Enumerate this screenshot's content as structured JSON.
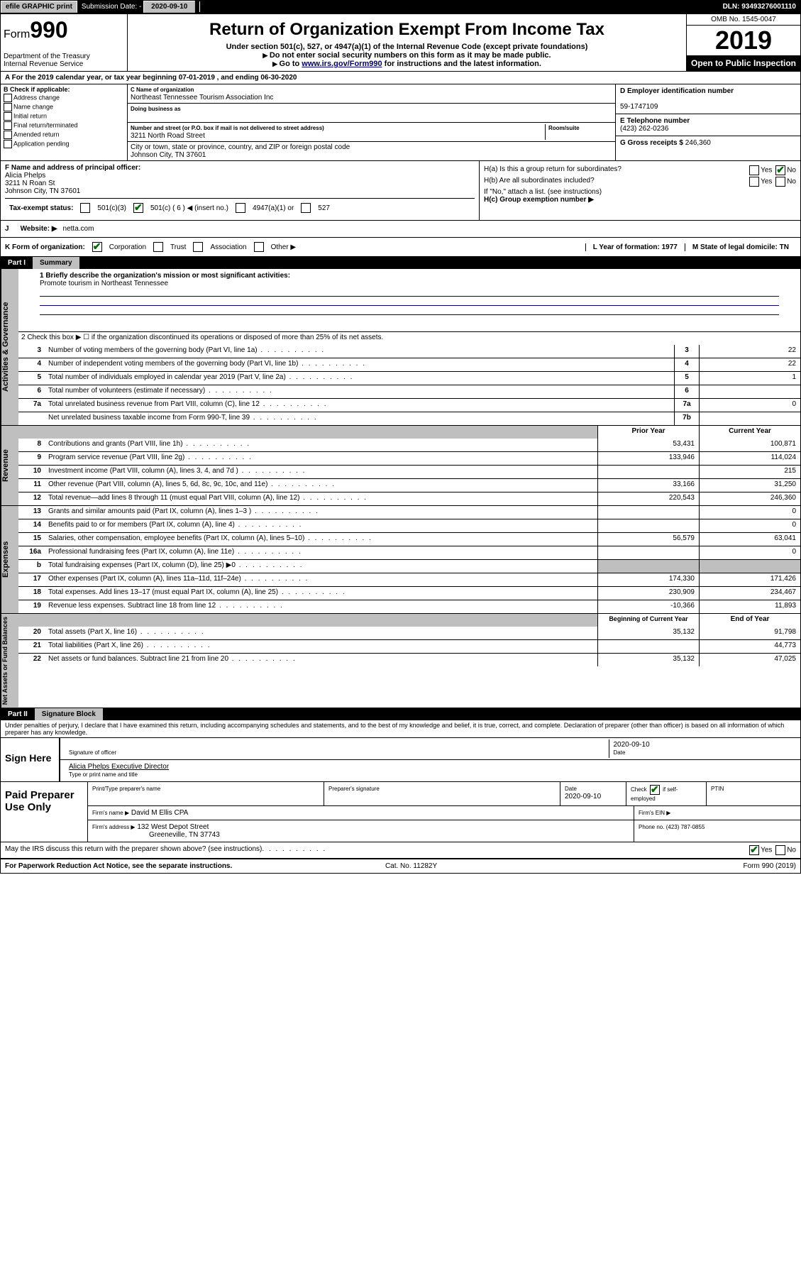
{
  "topbar": {
    "efile": "efile GRAPHIC print",
    "submission_label": "Submission Date: -",
    "submission_date": "2020-09-10",
    "dln": "DLN: 93493276001110"
  },
  "header": {
    "form_label": "Form",
    "form_num": "990",
    "dept": "Department of the Treasury",
    "irs": "Internal Revenue Service",
    "title": "Return of Organization Exempt From Income Tax",
    "sub1": "Under section 501(c), 527, or 4947(a)(1) of the Internal Revenue Code (except private foundations)",
    "sub2": "Do not enter social security numbers on this form as it may be made public.",
    "sub3_pre": "Go to ",
    "sub3_link": "www.irs.gov/Form990",
    "sub3_post": " for instructions and the latest information.",
    "omb": "OMB No. 1545-0047",
    "year": "2019",
    "open": "Open to Public Inspection"
  },
  "period": "For the 2019 calendar year, or tax year beginning 07-01-2019   , and ending 06-30-2020",
  "boxB": {
    "title": "B Check if applicable:",
    "opts": [
      "Address change",
      "Name change",
      "Initial return",
      "Final return/terminated",
      "Amended return",
      "Application pending"
    ]
  },
  "boxC": {
    "name_lbl": "C Name of organization",
    "name": "Northeast Tennessee Tourism Association Inc",
    "dba_lbl": "Doing business as",
    "dba": "",
    "addr_lbl": "Number and street (or P.O. box if mail is not delivered to street address)",
    "room_lbl": "Room/suite",
    "addr": "3211 North Road Street",
    "city_lbl": "City or town, state or province, country, and ZIP or foreign postal code",
    "city": "Johnson City, TN  37601"
  },
  "boxD": {
    "lbl": "D Employer identification number",
    "val": "59-1747109"
  },
  "boxE": {
    "lbl": "E Telephone number",
    "val": "(423) 262-0236"
  },
  "boxG": {
    "lbl": "G Gross receipts $",
    "val": "246,360"
  },
  "boxF": {
    "lbl": "F  Name and address of principal officer:",
    "name": "Alicia Phelps",
    "addr": "3211 N Roan St",
    "city": "Johnson City, TN  37601"
  },
  "boxH": {
    "a": "H(a)  Is this a group return for subordinates?",
    "b": "H(b)  Are all subordinates included?",
    "b_note": "If \"No,\" attach a list. (see instructions)",
    "c": "H(c)  Group exemption number ▶"
  },
  "status": {
    "lbl": "Tax-exempt status:",
    "opt1": "501(c)(3)",
    "opt2": "501(c) ( 6 ) ◀ (insert no.)",
    "opt3": "4947(a)(1) or",
    "opt4": "527"
  },
  "website": {
    "j": "J",
    "lbl": "Website: ▶",
    "val": "netta.com"
  },
  "k": {
    "lbl": "K Form of organization:",
    "opts": [
      "Corporation",
      "Trust",
      "Association",
      "Other ▶"
    ],
    "l": "L Year of formation: 1977",
    "m": "M State of legal domicile: TN"
  },
  "parts": {
    "p1": "Part I",
    "p1t": "Summary",
    "p2": "Part II",
    "p2t": "Signature Block"
  },
  "summary": {
    "l1": "1  Briefly describe the organization's mission or most significant activities:",
    "mission": "Promote tourism in Northeast Tennessee",
    "l2": "2  Check this box ▶ ☐  if the organization discontinued its operations or disposed of more than 25% of its net assets."
  },
  "gov_lines": [
    {
      "n": "3",
      "d": "Number of voting members of the governing body (Part VI, line 1a)",
      "bn": "3",
      "v": "22"
    },
    {
      "n": "4",
      "d": "Number of independent voting members of the governing body (Part VI, line 1b)",
      "bn": "4",
      "v": "22"
    },
    {
      "n": "5",
      "d": "Total number of individuals employed in calendar year 2019 (Part V, line 2a)",
      "bn": "5",
      "v": "1"
    },
    {
      "n": "6",
      "d": "Total number of volunteers (estimate if necessary)",
      "bn": "6",
      "v": ""
    },
    {
      "n": "7a",
      "d": "Total unrelated business revenue from Part VIII, column (C), line 12",
      "bn": "7a",
      "v": "0"
    },
    {
      "n": "",
      "d": "Net unrelated business taxable income from Form 990-T, line 39",
      "bn": "7b",
      "v": ""
    }
  ],
  "rev_head": {
    "prior": "Prior Year",
    "curr": "Current Year"
  },
  "rev_lines": [
    {
      "n": "8",
      "d": "Contributions and grants (Part VIII, line 1h)",
      "p": "53,431",
      "c": "100,871"
    },
    {
      "n": "9",
      "d": "Program service revenue (Part VIII, line 2g)",
      "p": "133,946",
      "c": "114,024"
    },
    {
      "n": "10",
      "d": "Investment income (Part VIII, column (A), lines 3, 4, and 7d )",
      "p": "",
      "c": "215"
    },
    {
      "n": "11",
      "d": "Other revenue (Part VIII, column (A), lines 5, 6d, 8c, 9c, 10c, and 11e)",
      "p": "33,166",
      "c": "31,250"
    },
    {
      "n": "12",
      "d": "Total revenue—add lines 8 through 11 (must equal Part VIII, column (A), line 12)",
      "p": "220,543",
      "c": "246,360"
    }
  ],
  "exp_lines": [
    {
      "n": "13",
      "d": "Grants and similar amounts paid (Part IX, column (A), lines 1–3 )",
      "p": "",
      "c": "0"
    },
    {
      "n": "14",
      "d": "Benefits paid to or for members (Part IX, column (A), line 4)",
      "p": "",
      "c": "0"
    },
    {
      "n": "15",
      "d": "Salaries, other compensation, employee benefits (Part IX, column (A), lines 5–10)",
      "p": "56,579",
      "c": "63,041"
    },
    {
      "n": "16a",
      "d": "Professional fundraising fees (Part IX, column (A), line 11e)",
      "p": "",
      "c": "0"
    },
    {
      "n": "b",
      "d": "Total fundraising expenses (Part IX, column (D), line 25) ▶0",
      "p": "grey",
      "c": "grey"
    },
    {
      "n": "17",
      "d": "Other expenses (Part IX, column (A), lines 11a–11d, 11f–24e)",
      "p": "174,330",
      "c": "171,426"
    },
    {
      "n": "18",
      "d": "Total expenses. Add lines 13–17 (must equal Part IX, column (A), line 25)",
      "p": "230,909",
      "c": "234,467"
    },
    {
      "n": "19",
      "d": "Revenue less expenses. Subtract line 18 from line 12",
      "p": "-10,366",
      "c": "11,893"
    }
  ],
  "na_head": {
    "prior": "Beginning of Current Year",
    "curr": "End of Year"
  },
  "na_lines": [
    {
      "n": "20",
      "d": "Total assets (Part X, line 16)",
      "p": "35,132",
      "c": "91,798"
    },
    {
      "n": "21",
      "d": "Total liabilities (Part X, line 26)",
      "p": "",
      "c": "44,773"
    },
    {
      "n": "22",
      "d": "Net assets or fund balances. Subtract line 21 from line 20",
      "p": "35,132",
      "c": "47,025"
    }
  ],
  "side": {
    "g": "Activities & Governance",
    "r": "Revenue",
    "e": "Expenses",
    "n": "Net Assets or Fund Balances"
  },
  "declaration": "Under penalties of perjury, I declare that I have examined this return, including accompanying schedules and statements, and to the best of my knowledge and belief, it is true, correct, and complete. Declaration of preparer (other than officer) is based on all information of which preparer has any knowledge.",
  "sign": {
    "here": "Sign Here",
    "sig_lbl": "Signature of officer",
    "date": "2020-09-10",
    "date_lbl": "Date",
    "name": "Alicia Phelps Executive Director",
    "name_lbl": "Type or print name and title"
  },
  "paid": {
    "title": "Paid Preparer Use Only",
    "r1c1": "Print/Type preparer's name",
    "r1c2": "Preparer's signature",
    "r1c3": "Date",
    "r1c3v": "2020-09-10",
    "r1c4": "Check ☑ if self-employed",
    "r1c5": "PTIN",
    "r2c1": "Firm's name   ▶",
    "r2c1v": "David M Ellis CPA",
    "r2c2": "Firm's EIN ▶",
    "r3c1": "Firm's address ▶",
    "r3c1v": "132 West Depot Street",
    "r3c1v2": "Greeneville, TN  37743",
    "r3c2": "Phone no. (423) 787-0855"
  },
  "discuss": "May the IRS discuss this return with the preparer shown above? (see instructions)",
  "footer": {
    "l": "For Paperwork Reduction Act Notice, see the separate instructions.",
    "c": "Cat. No. 11282Y",
    "r": "Form 990 (2019)"
  }
}
